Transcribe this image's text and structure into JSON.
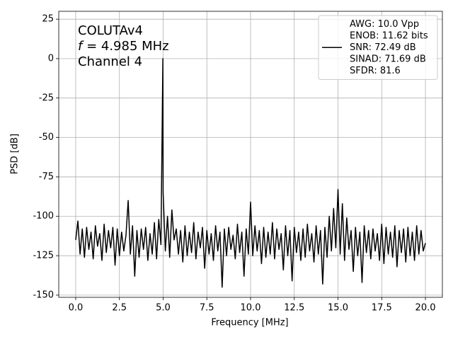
{
  "chart_data": {
    "type": "line",
    "xlabel": "Frequency [MHz]",
    "ylabel": "PSD [dB]",
    "annotation": [
      "COLUTAv4",
      "f = 4.985 MHz",
      "Channel 4"
    ],
    "x": [
      0,
      0.125,
      0.25,
      0.375,
      0.5,
      0.625,
      0.75,
      0.875,
      1,
      1.125,
      1.25,
      1.375,
      1.5,
      1.625,
      1.75,
      1.875,
      2,
      2.125,
      2.25,
      2.375,
      2.5,
      2.625,
      2.75,
      2.875,
      3,
      3.125,
      3.25,
      3.375,
      3.5,
      3.625,
      3.75,
      3.875,
      4,
      4.125,
      4.25,
      4.375,
      4.5,
      4.625,
      4.75,
      4.875,
      4.985,
      5,
      5.125,
      5.25,
      5.375,
      5.5,
      5.625,
      5.75,
      5.875,
      6,
      6.125,
      6.25,
      6.375,
      6.5,
      6.625,
      6.75,
      6.875,
      7,
      7.125,
      7.25,
      7.375,
      7.5,
      7.625,
      7.75,
      7.875,
      8,
      8.125,
      8.25,
      8.375,
      8.5,
      8.625,
      8.75,
      8.875,
      9,
      9.125,
      9.25,
      9.375,
      9.5,
      9.625,
      9.75,
      9.875,
      10,
      10.125,
      10.25,
      10.375,
      10.5,
      10.625,
      10.75,
      10.875,
      11,
      11.125,
      11.25,
      11.375,
      11.5,
      11.625,
      11.75,
      11.875,
      12,
      12.125,
      12.25,
      12.375,
      12.5,
      12.625,
      12.75,
      12.875,
      13,
      13.125,
      13.25,
      13.375,
      13.5,
      13.625,
      13.75,
      13.875,
      14,
      14.125,
      14.25,
      14.375,
      14.5,
      14.625,
      14.75,
      14.875,
      15,
      15.125,
      15.25,
      15.375,
      15.5,
      15.625,
      15.75,
      15.875,
      16,
      16.125,
      16.25,
      16.375,
      16.5,
      16.625,
      16.75,
      16.875,
      17,
      17.125,
      17.25,
      17.375,
      17.5,
      17.625,
      17.75,
      17.875,
      18,
      18.125,
      18.25,
      18.375,
      18.5,
      18.625,
      18.75,
      18.875,
      19,
      19.125,
      19.25,
      19.375,
      19.5,
      19.625,
      19.75,
      19.875,
      20
    ],
    "series": [
      {
        "name": "AWG: 10.0 Vpp\nENOB: 11.62 bits\nSNR: 72.49 dB\nSINAD: 71.69 dB\nSFDR: 81.6",
        "color": "#000000",
        "values": [
          -115,
          -103,
          -124,
          -108,
          -126,
          -107,
          -121,
          -110,
          -127,
          -106,
          -119,
          -111,
          -128,
          -105,
          -123,
          -109,
          -120,
          -107,
          -131,
          -108,
          -125,
          -110,
          -122,
          -112,
          -90,
          -124,
          -106,
          -138,
          -109,
          -126,
          -108,
          -121,
          -107,
          -128,
          -111,
          -124,
          -104,
          -127,
          -102,
          -118,
          0,
          -85,
          -122,
          -100,
          -126,
          -96,
          -115,
          -108,
          -124,
          -109,
          -129,
          -106,
          -125,
          -110,
          -123,
          -104,
          -127,
          -110,
          -120,
          -107,
          -133,
          -109,
          -124,
          -111,
          -128,
          -106,
          -122,
          -110,
          -145,
          -108,
          -125,
          -107,
          -121,
          -112,
          -127,
          -105,
          -123,
          -110,
          -138,
          -108,
          -124,
          -91,
          -125,
          -106,
          -122,
          -109,
          -130,
          -107,
          -126,
          -110,
          -124,
          -104,
          -127,
          -108,
          -121,
          -111,
          -134,
          -106,
          -125,
          -109,
          -141,
          -107,
          -123,
          -110,
          -128,
          -108,
          -126,
          -105,
          -122,
          -111,
          -129,
          -106,
          -124,
          -109,
          -143,
          -107,
          -126,
          -100,
          -122,
          -95,
          -120,
          -83,
          -124,
          -92,
          -128,
          -101,
          -121,
          -109,
          -135,
          -107,
          -125,
          -110,
          -142,
          -106,
          -123,
          -109,
          -127,
          -108,
          -122,
          -111,
          -128,
          -105,
          -130,
          -107,
          -124,
          -110,
          -126,
          -106,
          -132,
          -109,
          -123,
          -108,
          -129,
          -107,
          -125,
          -110,
          -128,
          -106,
          -124,
          -109,
          -122,
          -117
        ]
      }
    ],
    "xlim": [
      -0.97,
      20.97
    ],
    "xticks": [
      {
        "value": 0,
        "label": "0.0"
      },
      {
        "value": 2.5,
        "label": "2.5"
      },
      {
        "value": 5,
        "label": "5.0"
      },
      {
        "value": 7.5,
        "label": "7.5"
      },
      {
        "value": 10,
        "label": "10.0"
      },
      {
        "value": 12.5,
        "label": "12.5"
      },
      {
        "value": 15,
        "label": "15.0"
      },
      {
        "value": 17.5,
        "label": "17.5"
      },
      {
        "value": 20,
        "label": "20.0"
      }
    ],
    "ylim": [
      -151.4,
      30
    ],
    "yticks": [
      25,
      0,
      -25,
      -50,
      -75,
      -100,
      -125,
      -150
    ],
    "grid": true,
    "legend": "upper right"
  }
}
